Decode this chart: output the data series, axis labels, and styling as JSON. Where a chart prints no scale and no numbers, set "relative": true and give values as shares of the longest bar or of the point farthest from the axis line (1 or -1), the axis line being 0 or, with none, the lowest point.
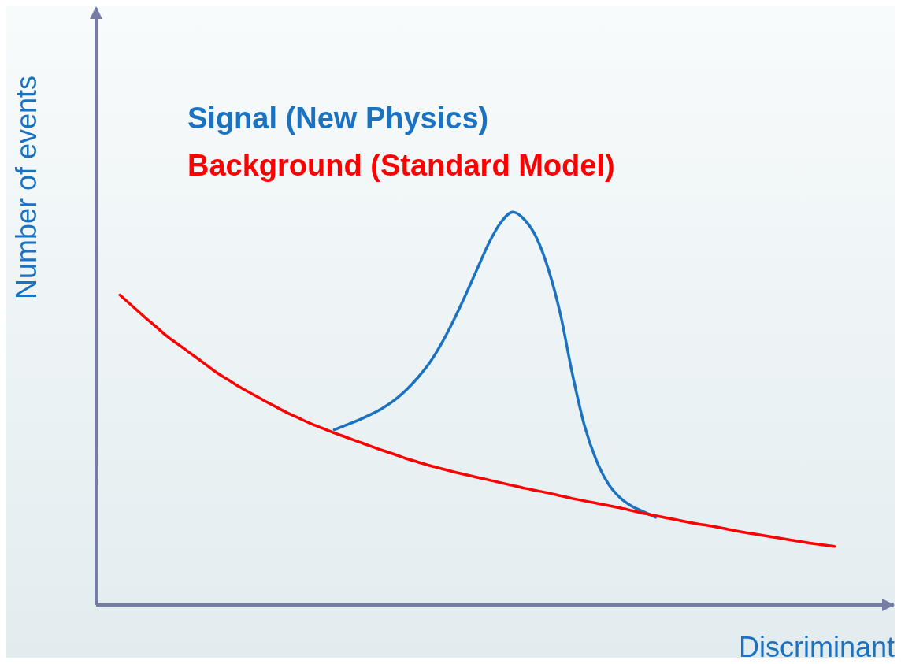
{
  "chart_data": {
    "type": "line",
    "relative": true,
    "xlabel": "Discriminant",
    "ylabel": "Number of events",
    "legend": "top left",
    "marker": "none",
    "line_style": "solid",
    "grid": false,
    "categories": [
      null,
      null,
      null,
      null,
      null,
      null,
      null,
      null,
      null,
      null,
      null,
      null,
      null,
      null,
      null,
      null,
      null,
      null,
      null,
      null,
      null,
      null,
      null,
      null,
      null,
      null,
      null,
      null,
      null,
      null,
      null,
      null,
      null,
      null,
      null,
      null,
      null,
      null,
      null,
      null,
      null,
      null,
      null,
      null,
      null,
      null,
      null,
      null,
      null,
      null,
      null,
      null,
      null,
      null,
      null,
      null,
      null,
      null,
      null,
      null,
      null
    ],
    "series": [
      {
        "name": "Signal (New Physics)",
        "color": "#1a72c0",
        "values": [
          null,
          null,
          null,
          null,
          null,
          null,
          null,
          null,
          null,
          null,
          null,
          null,
          null,
          null,
          null,
          null,
          null,
          null,
          0.446,
          0.458,
          0.47,
          0.484,
          0.5,
          0.52,
          0.546,
          0.578,
          0.616,
          0.665,
          0.723,
          0.787,
          0.855,
          0.922,
          0.974,
          1,
          0.98,
          0.934,
          0.853,
          0.739,
          0.588,
          0.458,
          0.369,
          0.309,
          0.273,
          0.251,
          0.237,
          0.223,
          null,
          null,
          null,
          null,
          null,
          null,
          null,
          null,
          null,
          null,
          null,
          null,
          null,
          null,
          null
        ]
      },
      {
        "name": "Background (Standard Model)",
        "color": "#ff0000",
        "values": [
          0.789,
          0.762,
          0.735,
          0.709,
          0.683,
          0.661,
          0.639,
          0.617,
          0.594,
          0.575,
          0.556,
          0.539,
          0.522,
          0.506,
          0.49,
          0.476,
          0.462,
          0.45,
          0.438,
          0.427,
          0.416,
          0.405,
          0.394,
          0.384,
          0.373,
          0.364,
          0.355,
          0.347,
          0.339,
          0.332,
          0.325,
          0.318,
          0.311,
          0.304,
          0.297,
          0.291,
          0.285,
          0.278,
          0.271,
          0.265,
          0.259,
          0.253,
          0.247,
          0.24,
          0.233,
          0.227,
          0.221,
          0.215,
          0.209,
          0.204,
          0.199,
          0.193,
          0.187,
          0.182,
          0.177,
          0.172,
          0.167,
          0.162,
          0.157,
          0.153,
          0.149
        ]
      }
    ]
  }
}
